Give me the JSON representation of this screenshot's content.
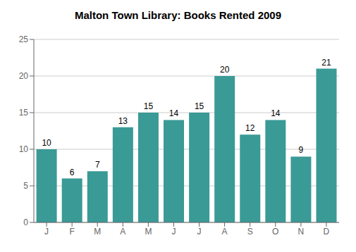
{
  "chart_data": {
    "type": "bar",
    "title": "Malton Town Library: Books Rented 2009",
    "categories": [
      "J",
      "F",
      "M",
      "A",
      "M",
      "J",
      "J",
      "A",
      "S",
      "O",
      "N",
      "D"
    ],
    "values": [
      10,
      6,
      7,
      13,
      15,
      14,
      15,
      20,
      12,
      14,
      9,
      21
    ],
    "color": "#3a9a96",
    "ylim": [
      0,
      25
    ],
    "yticks": [
      0,
      5,
      10,
      15,
      20,
      25
    ],
    "grid": true,
    "data_labels": true
  }
}
